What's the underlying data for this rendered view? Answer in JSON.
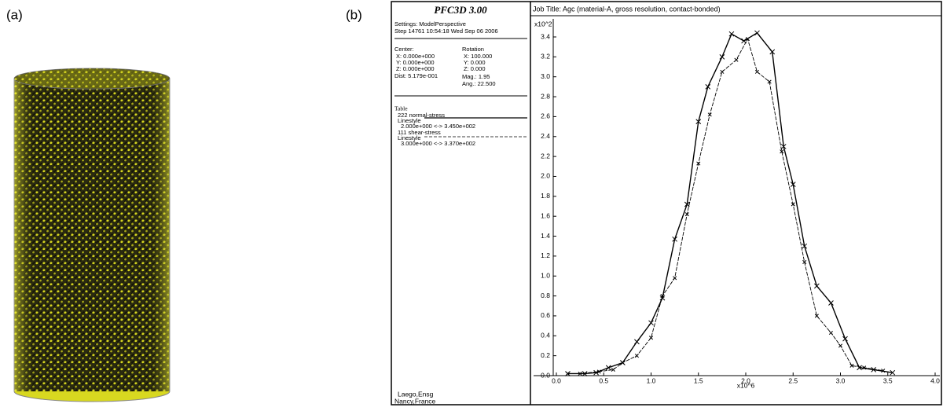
{
  "panel_labels": [
    "(a)",
    "(b)"
  ],
  "info": {
    "title": "PFC3D 3.00",
    "settings": "Settings: ModelPerspective",
    "step": "Step 14761  10:54:18 Wed Sep 06 2006",
    "center_label": "Center:",
    "center": [
      "X: 0.000e+000",
      "Y: 0.000e+000",
      "Z: 0.000e+000"
    ],
    "dist": "Dist: 5.179e-001",
    "rotation_label": "Rotation",
    "rotation": [
      "X: 100.000",
      "Y:   0.000",
      "Z:   0.000"
    ],
    "mag": "Mag.:    1.95",
    "ang": "Ang.: 22.500",
    "table_label": "Table",
    "legend_rows": [
      {
        "linestyle": "Linestyle",
        "range": "2.000e+000 <-> 3.450e+002"
      },
      {
        "linestyle": "Linestyle",
        "range": "3.000e+000 <-> 3.370e+002"
      }
    ],
    "footer": [
      "Laego,Ensg",
      "Nancy,France"
    ]
  },
  "chart_data": {
    "type": "line",
    "title": "Job Title: Agc (material-A, gross resolution, contact-bonded)",
    "x_label": "x10^6",
    "y_label": "x10^2",
    "xlim": [
      0,
      4
    ],
    "ylim": [
      0,
      3.4
    ],
    "xticks": [
      {
        "value": 0,
        "label": "0.0"
      },
      {
        "value": 0.5,
        "label": "0.5"
      },
      {
        "value": 1,
        "label": "1.0"
      },
      {
        "value": 1.5,
        "label": "1.5"
      },
      {
        "value": 2,
        "label": "2.0"
      },
      {
        "value": 2.5,
        "label": "2.5"
      },
      {
        "value": 3,
        "label": "3.0"
      },
      {
        "value": 3.5,
        "label": "3.5"
      },
      {
        "value": 4,
        "label": "4.0"
      }
    ],
    "yticks": [
      {
        "value": 0,
        "label": "0.0"
      },
      {
        "value": 0.2,
        "label": "0.2"
      },
      {
        "value": 0.4,
        "label": "0.4"
      },
      {
        "value": 0.6,
        "label": "0.6"
      },
      {
        "value": 0.8,
        "label": "0.8"
      },
      {
        "value": 1,
        "label": "1.0"
      },
      {
        "value": 1.2,
        "label": "1.2"
      },
      {
        "value": 1.4,
        "label": "1.4"
      },
      {
        "value": 1.6,
        "label": "1.6"
      },
      {
        "value": 1.8,
        "label": "1.8"
      },
      {
        "value": 2,
        "label": "2.0"
      },
      {
        "value": 2.2,
        "label": "2.2"
      },
      {
        "value": 2.4,
        "label": "2.4"
      },
      {
        "value": 2.6,
        "label": "2.6"
      },
      {
        "value": 2.8,
        "label": "2.8"
      },
      {
        "value": 3,
        "label": "3.0"
      },
      {
        "value": 3.2,
        "label": "3.2"
      },
      {
        "value": 3.4,
        "label": "3.4"
      }
    ],
    "series": [
      {
        "name": "222 normal-stress",
        "color": "#000000",
        "dashed": false,
        "x": [
          0.12,
          0.3,
          0.42,
          0.55,
          0.7,
          0.85,
          1.0,
          1.12,
          1.25,
          1.38,
          1.5,
          1.6,
          1.75,
          1.85,
          1.98,
          2.12,
          2.28,
          2.4,
          2.5,
          2.62,
          2.75,
          2.9,
          3.05,
          3.2,
          3.35,
          3.55
        ],
        "values": [
          0.02,
          0.02,
          0.03,
          0.08,
          0.13,
          0.34,
          0.53,
          0.78,
          1.37,
          1.72,
          2.55,
          2.9,
          3.2,
          3.43,
          3.36,
          3.44,
          3.25,
          2.3,
          1.92,
          1.3,
          0.9,
          0.73,
          0.37,
          0.08,
          0.06,
          0.03
        ]
      },
      {
        "name": "111 shear-stress",
        "color": "#000000",
        "dashed": true,
        "x": [
          0.12,
          0.25,
          0.45,
          0.6,
          0.7,
          0.85,
          1.0,
          1.12,
          1.25,
          1.38,
          1.5,
          1.62,
          1.75,
          1.9,
          2.02,
          2.12,
          2.25,
          2.38,
          2.5,
          2.62,
          2.75,
          2.9,
          3.0,
          3.12,
          3.25,
          3.45
        ],
        "values": [
          0.02,
          0.02,
          0.04,
          0.06,
          0.13,
          0.2,
          0.38,
          0.8,
          0.98,
          1.62,
          2.13,
          2.62,
          3.05,
          3.17,
          3.38,
          3.05,
          2.95,
          2.25,
          1.72,
          1.14,
          0.6,
          0.43,
          0.3,
          0.1,
          0.08,
          0.05
        ]
      }
    ]
  }
}
